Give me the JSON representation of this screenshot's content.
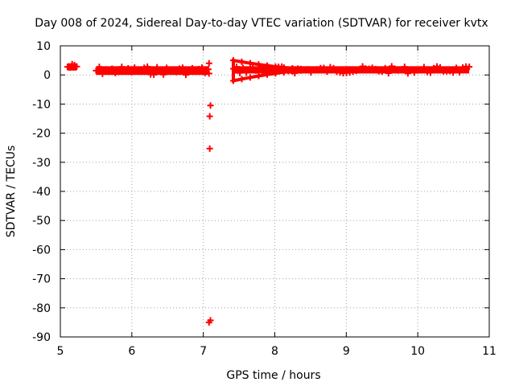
{
  "chart_data": {
    "type": "scatter",
    "title": "Day 008 of 2024, Sidereal Day-to-day VTEC variation (SDTVAR) for receiver kvtx",
    "xlabel": "GPS time / hours",
    "ylabel": "SDTVAR / TECUs",
    "xlim": [
      5,
      11
    ],
    "ylim": [
      -90,
      10
    ],
    "xticks": [
      5,
      6,
      7,
      8,
      9,
      10,
      11
    ],
    "yticks": [
      10,
      0,
      -10,
      -20,
      -30,
      -40,
      -50,
      -60,
      -70,
      -80,
      -90
    ],
    "grid": true,
    "marker_color": "#ff0000",
    "series": [
      {
        "segments": [
          {
            "x_start": 5.1,
            "x_end": 5.23,
            "y_low": 1.5,
            "y_high": 4.0
          },
          {
            "x_start": 5.5,
            "x_end": 7.07,
            "y_low": 0.0,
            "y_high": 3.0
          },
          {
            "x_start": 7.42,
            "x_end": 10.72,
            "y_low": 0.5,
            "y_high": 3.0
          }
        ],
        "points": [
          {
            "x": 7.08,
            "y": 4.0
          },
          {
            "x": 7.08,
            "y": 0.5
          },
          {
            "x": 7.1,
            "y": -10.5
          },
          {
            "x": 7.09,
            "y": -14.2
          },
          {
            "x": 7.09,
            "y": -25.3
          },
          {
            "x": 7.1,
            "y": -84.3
          },
          {
            "x": 7.08,
            "y": -85.0
          }
        ],
        "convergence": {
          "x_start": 7.42,
          "x_end": 8.6,
          "y_upper_start": 5.0,
          "y_lower_start": -2.0,
          "y_end": 1.8
        }
      }
    ]
  }
}
